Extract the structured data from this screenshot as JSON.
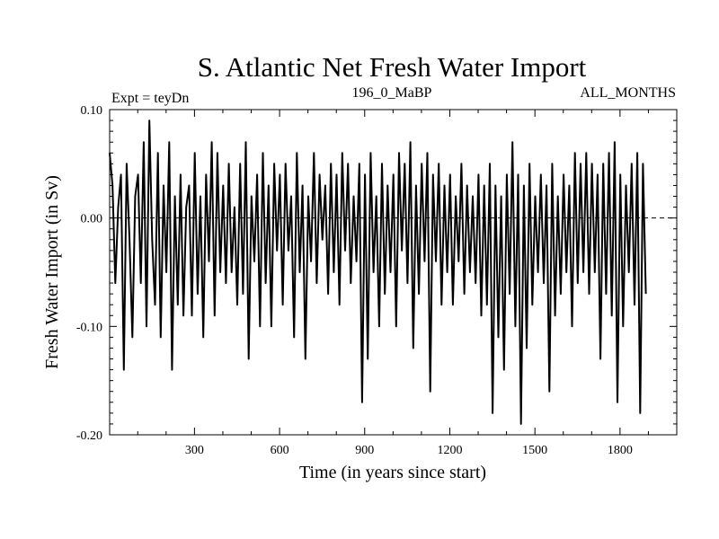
{
  "chart_data": {
    "type": "line",
    "title": "S. Atlantic Net Fresh Water Import",
    "subtitle_left": "Expt = teyDn",
    "subtitle_center": "196_0_MaBP",
    "subtitle_right": "ALL_MONTHS",
    "xlabel": "Time (in years since start)",
    "ylabel": "Fresh Water Import (in Sv)",
    "xlim": [
      1,
      2000
    ],
    "ylim": [
      -0.2,
      0.1
    ],
    "x_ticks": [
      300,
      600,
      900,
      1200,
      1500,
      1800
    ],
    "y_ticks": [
      -0.2,
      -0.1,
      0.0,
      0.1
    ],
    "y_tick_labels": [
      "-0.20",
      "-0.10",
      "0.00",
      "0.10"
    ],
    "zero_line": true,
    "series": [
      {
        "name": "Net Fresh Water Import",
        "x_start": 1,
        "x_step": 10,
        "values": [
          0.06,
          0.03,
          -0.06,
          0.01,
          0.04,
          -0.14,
          0.05,
          -0.02,
          -0.11,
          0.02,
          0.04,
          -0.06,
          0.07,
          -0.1,
          0.09,
          -0.02,
          -0.08,
          0.06,
          -0.11,
          0.03,
          -0.05,
          0.07,
          -0.14,
          0.02,
          -0.08,
          0.04,
          -0.09,
          0.01,
          0.03,
          -0.09,
          0.06,
          -0.07,
          0.02,
          -0.11,
          0.04,
          -0.04,
          0.07,
          -0.09,
          0.06,
          -0.05,
          0.03,
          -0.06,
          0.05,
          -0.05,
          0.01,
          -0.08,
          0.05,
          -0.07,
          0.07,
          -0.13,
          0.02,
          -0.04,
          0.04,
          -0.1,
          0.06,
          -0.06,
          0.03,
          -0.1,
          0.05,
          -0.03,
          0.04,
          -0.08,
          0.05,
          -0.03,
          0.02,
          -0.11,
          0.06,
          -0.05,
          0.03,
          -0.13,
          0.02,
          -0.04,
          0.06,
          -0.06,
          0.04,
          -0.02,
          0.03,
          -0.07,
          0.05,
          -0.05,
          0.04,
          -0.08,
          0.06,
          -0.03,
          0.05,
          -0.06,
          0.02,
          -0.04,
          0.05,
          -0.17,
          0.04,
          -0.13,
          0.06,
          -0.05,
          0.02,
          -0.1,
          0.05,
          -0.07,
          0.03,
          -0.05,
          0.04,
          -0.1,
          0.06,
          -0.03,
          0.05,
          -0.06,
          0.07,
          -0.12,
          0.03,
          -0.07,
          0.05,
          -0.04,
          0.06,
          -0.16,
          0.04,
          -0.04,
          0.05,
          -0.08,
          0.03,
          -0.05,
          0.04,
          -0.08,
          0.02,
          -0.04,
          0.05,
          -0.07,
          0.03,
          -0.05,
          0.02,
          -0.06,
          0.04,
          -0.09,
          0.03,
          -0.08,
          0.05,
          -0.18,
          0.03,
          -0.11,
          0.02,
          -0.14,
          0.04,
          -0.07,
          0.07,
          -0.1,
          0.04,
          -0.19,
          0.03,
          -0.12,
          0.05,
          -0.08,
          0.02,
          -0.05,
          0.04,
          -0.06,
          0.03,
          -0.16,
          0.05,
          -0.09,
          0.02,
          -0.07,
          0.04,
          -0.05,
          0.03,
          -0.1,
          0.06,
          -0.06,
          0.05,
          -0.05,
          0.06,
          -0.07,
          0.05,
          -0.05,
          0.04,
          -0.13,
          0.05,
          -0.07,
          0.06,
          -0.09,
          0.07,
          -0.17,
          0.04,
          -0.1,
          0.03,
          -0.05,
          0.05,
          -0.08,
          0.06,
          -0.18,
          0.05,
          -0.07
        ]
      }
    ]
  }
}
